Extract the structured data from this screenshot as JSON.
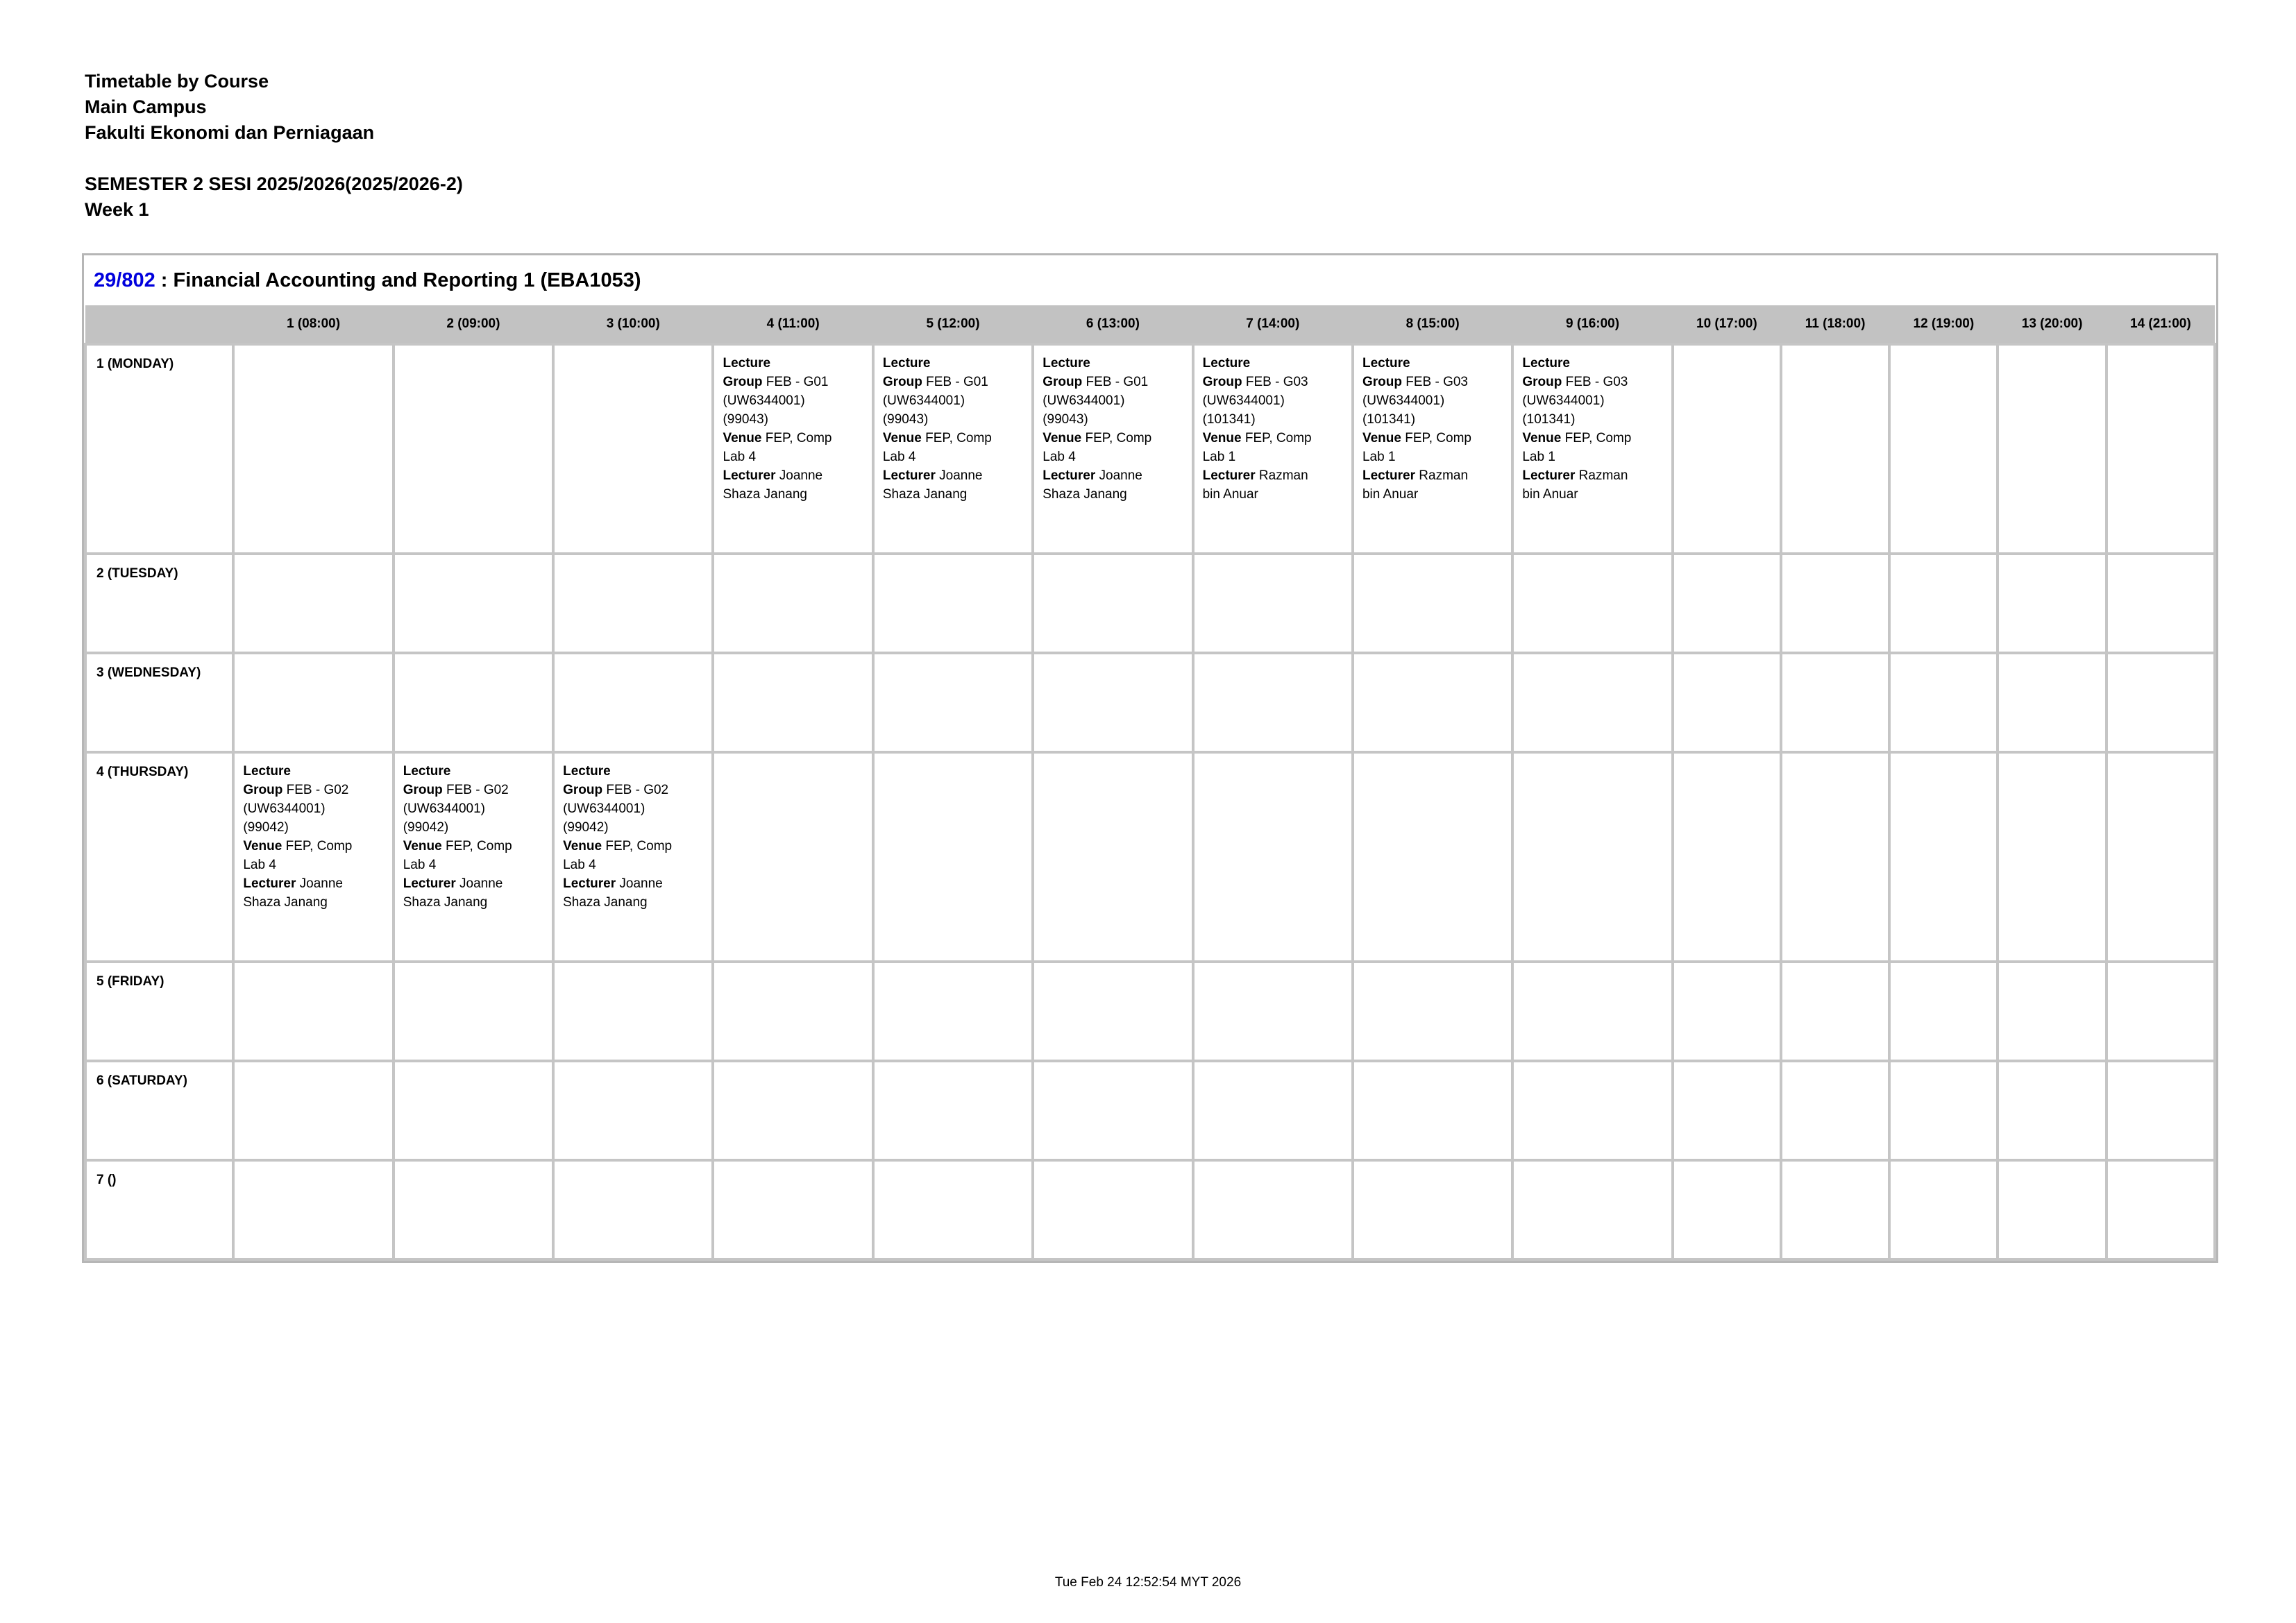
{
  "colors": {
    "course_code_link": "#0000dd",
    "header_row_bg": "#c2c2c2",
    "grid_border": "#c5c5c5"
  },
  "report": {
    "title_line": "Timetable by Course",
    "campus_line": "Main Campus",
    "faculty_line": "Fakulti Ekonomi dan Perniagaan",
    "semester_line": "SEMESTER 2 SESI 2025/2026(2025/2026-2)",
    "week_line": "Week 1"
  },
  "course": {
    "code": "29/802",
    "separator": " : ",
    "title": "Financial Accounting and Reporting 1 (EBA1053)"
  },
  "timetable": {
    "columns": [
      "1 (08:00)",
      "2 (09:00)",
      "3 (10:00)",
      "4 (11:00)",
      "5 (12:00)",
      "6 (13:00)",
      "7 (14:00)",
      "8 (15:00)",
      "9 (16:00)",
      "10 (17:00)",
      "11 (18:00)",
      "12 (19:00)",
      "13 (20:00)",
      "14 (21:00)"
    ],
    "entries": {
      "g01": {
        "summary": "Lecture, Group FEB - G01 (UW6344001) (99043), Venue FEP, Comp Lab 4, Lecturer Joanne Shaza Janang",
        "lines": [
          [
            {
              "b": true,
              "t": "Lecture"
            }
          ],
          [
            {
              "b": true,
              "t": "Group"
            },
            {
              "b": false,
              "t": " FEB - G01"
            }
          ],
          [
            {
              "b": false,
              "t": "(UW6344001)"
            }
          ],
          [
            {
              "b": false,
              "t": "(99043)"
            }
          ],
          [
            {
              "b": true,
              "t": "Venue"
            },
            {
              "b": false,
              "t": " FEP, Comp"
            }
          ],
          [
            {
              "b": false,
              "t": "Lab 4"
            }
          ],
          [
            {
              "b": true,
              "t": "Lecturer"
            },
            {
              "b": false,
              "t": " Joanne"
            }
          ],
          [
            {
              "b": false,
              "t": "Shaza Janang"
            }
          ]
        ]
      },
      "g03": {
        "summary": "Lecture, Group FEB - G03 (UW6344001) (101341), Venue FEP, Comp Lab 1, Lecturer Razman bin Anuar",
        "lines": [
          [
            {
              "b": true,
              "t": "Lecture"
            }
          ],
          [
            {
              "b": true,
              "t": "Group"
            },
            {
              "b": false,
              "t": " FEB - G03"
            }
          ],
          [
            {
              "b": false,
              "t": "(UW6344001)"
            }
          ],
          [
            {
              "b": false,
              "t": "(101341)"
            }
          ],
          [
            {
              "b": true,
              "t": "Venue"
            },
            {
              "b": false,
              "t": " FEP, Comp"
            }
          ],
          [
            {
              "b": false,
              "t": "Lab 1"
            }
          ],
          [
            {
              "b": true,
              "t": "Lecturer"
            },
            {
              "b": false,
              "t": " Razman"
            }
          ],
          [
            {
              "b": false,
              "t": "bin Anuar"
            }
          ]
        ]
      },
      "g02": {
        "summary": "Lecture, Group FEB - G02 (UW6344001) (99042), Venue FEP, Comp Lab 4, Lecturer Joanne Shaza Janang",
        "lines": [
          [
            {
              "b": true,
              "t": "Lecture"
            }
          ],
          [
            {
              "b": true,
              "t": "Group"
            },
            {
              "b": false,
              "t": " FEB - G02"
            }
          ],
          [
            {
              "b": false,
              "t": "(UW6344001)"
            }
          ],
          [
            {
              "b": false,
              "t": "(99042)"
            }
          ],
          [
            {
              "b": true,
              "t": "Venue"
            },
            {
              "b": false,
              "t": " FEP, Comp"
            }
          ],
          [
            {
              "b": false,
              "t": "Lab 4"
            }
          ],
          [
            {
              "b": true,
              "t": "Lecturer"
            },
            {
              "b": false,
              "t": " Joanne"
            }
          ],
          [
            {
              "b": false,
              "t": "Shaza Janang"
            }
          ]
        ]
      }
    },
    "rows": [
      {
        "day": "1 (MONDAY)",
        "cells": {
          "4": "g01",
          "5": "g01",
          "6": "g01",
          "7": "g03",
          "8": "g03",
          "9": "g03"
        }
      },
      {
        "day": "2 (TUESDAY)",
        "cells": {}
      },
      {
        "day": "3 (WEDNESDAY)",
        "cells": {}
      },
      {
        "day": "4 (THURSDAY)",
        "cells": {
          "1": "g02",
          "2": "g02",
          "3": "g02"
        }
      },
      {
        "day": "5 (FRIDAY)",
        "cells": {}
      },
      {
        "day": "6 (SATURDAY)",
        "cells": {}
      },
      {
        "day": "7 ()",
        "cells": {}
      }
    ]
  },
  "footer": {
    "timestamp": "Tue Feb 24 12:52:54 MYT 2026"
  }
}
